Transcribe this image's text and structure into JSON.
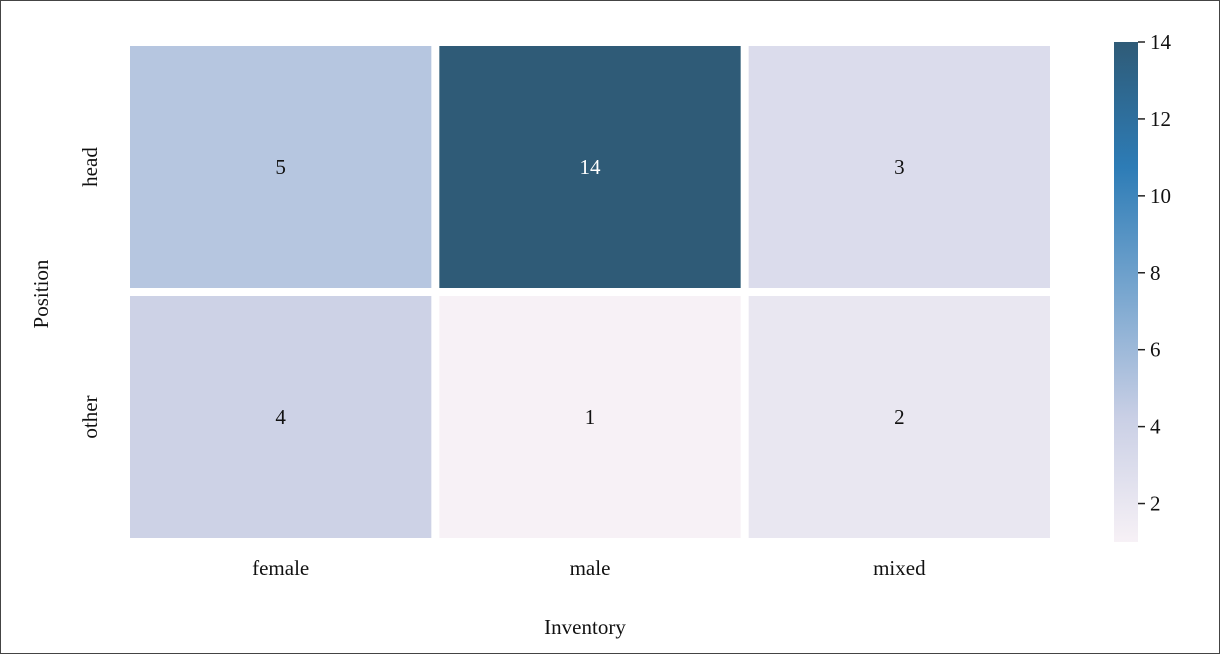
{
  "chart_data": {
    "type": "heatmap",
    "title": "",
    "xlabel": "Inventory",
    "ylabel": "Position",
    "x_categories": [
      "female",
      "male",
      "mixed"
    ],
    "y_categories": [
      "head",
      "other"
    ],
    "values": [
      [
        5,
        14,
        3
      ],
      [
        4,
        1,
        2
      ]
    ],
    "colorbar": {
      "min": 1,
      "max": 14,
      "ticks": [
        2,
        4,
        6,
        8,
        10,
        12,
        14
      ],
      "colors": [
        "#f7f1f6",
        "#c9cfe5",
        "#78a6cf",
        "#2d7cb6",
        "#2f5b77"
      ]
    },
    "annotations": true,
    "grid": false,
    "legend": "colorbar-right"
  }
}
